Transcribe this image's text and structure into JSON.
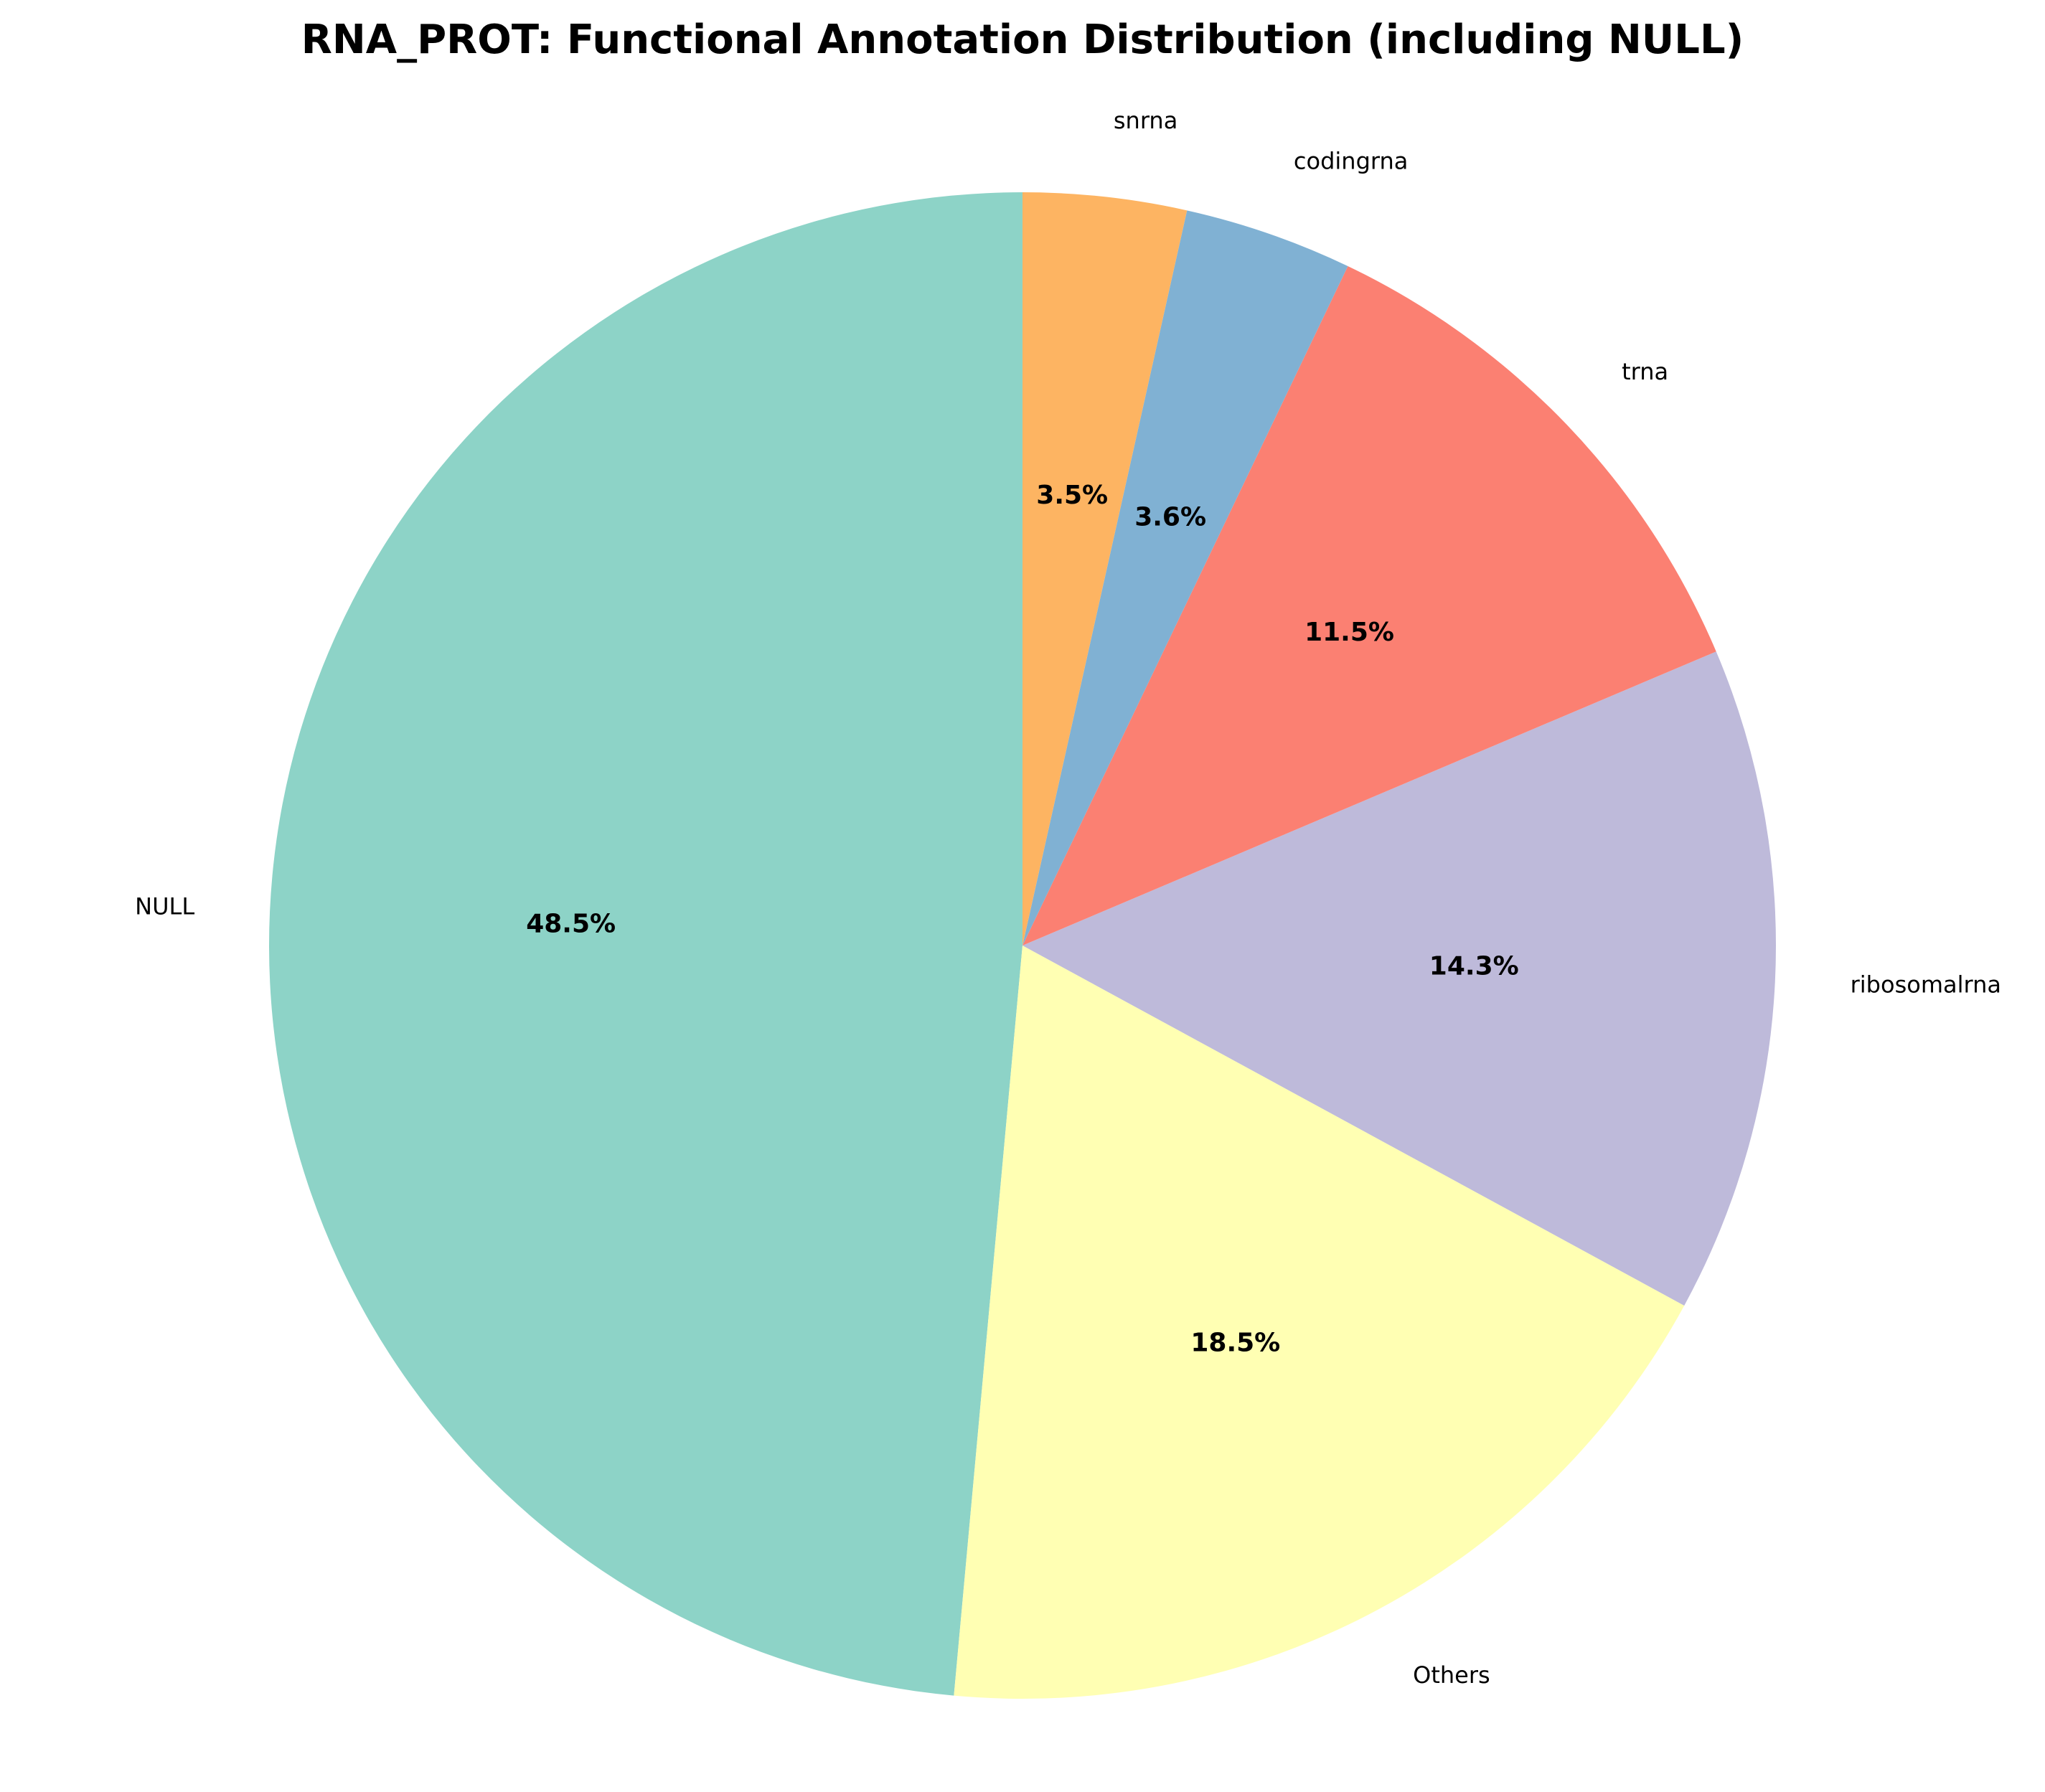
{
  "chart_data": {
    "type": "pie",
    "title": "RNA_PROT: Functional Annotation Distribution (including NULL)",
    "start_angle_deg": 90,
    "direction": "counterclockwise",
    "slices": [
      {
        "label": "NULL",
        "value": 48.5,
        "pct_label": "48.5%",
        "color": "#8dd3c7"
      },
      {
        "label": "Others",
        "value": 18.5,
        "pct_label": "18.5%",
        "color": "#ffffb3"
      },
      {
        "label": "ribosomalrna",
        "value": 14.3,
        "pct_label": "14.3%",
        "color": "#bebada"
      },
      {
        "label": "trna",
        "value": 11.5,
        "pct_label": "11.5%",
        "color": "#fb8072"
      },
      {
        "label": "codingrna",
        "value": 3.6,
        "pct_label": "3.6%",
        "color": "#80b1d3"
      },
      {
        "label": "snrna",
        "value": 3.5,
        "pct_label": "3.5%",
        "color": "#fdb462"
      }
    ]
  }
}
